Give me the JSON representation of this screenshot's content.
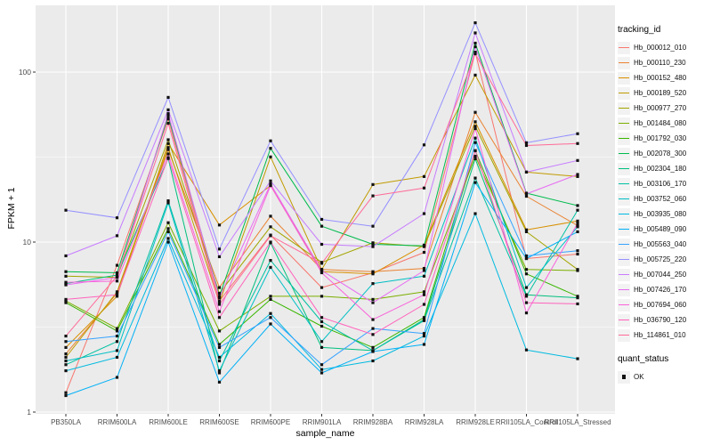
{
  "chart_data": {
    "type": "line",
    "title": "",
    "xlabel": "sample_name",
    "ylabel": "FPKM + 1",
    "y_scale": "log10",
    "y_ticks": [
      100,
      10,
      1
    ],
    "y_minor_gridlines": [
      3.1623,
      31.623
    ],
    "ylim": [
      1,
      250
    ],
    "grid": "major-white-on-grey",
    "panel_bg": "#EBEBEB",
    "grid_color": "#FFFFFF",
    "point_marker": "black-square",
    "legend_position": "right",
    "categories": [
      "PB350LA",
      "RRIM600LA",
      "RRIM600LE",
      "RRIM600SE",
      "RRIM600PE",
      "RRIM901LA",
      "RRIM928BA",
      "RRIM928LA",
      "RRIM928LE",
      "RRII105LA_Control",
      "RRII105LA_Stressed"
    ],
    "legend": {
      "color_title": "tracking_id",
      "shape_title": "quant_status",
      "shape_items": [
        {
          "label": "OK",
          "marker": "black-square"
        }
      ]
    },
    "series": [
      {
        "name": "Hb_000012_010",
        "color": "#F8766D",
        "values": [
          1.3,
          7.3,
          53,
          4.5,
          11.0,
          5.4,
          6.6,
          8.7,
          131,
          8.0,
          8.5
        ]
      },
      {
        "name": "Hb_000110_230",
        "color": "#EA8331",
        "values": [
          2.2,
          5.0,
          35,
          5.4,
          14.2,
          6.9,
          6.7,
          7.0,
          58,
          18.6,
          12.5
        ]
      },
      {
        "name": "Hb_000152_480",
        "color": "#D89000",
        "values": [
          2.4,
          4.8,
          38,
          12.6,
          21.5,
          6.7,
          6.5,
          9.6,
          51,
          11.8,
          13.3
        ]
      },
      {
        "name": "Hb_000189_520",
        "color": "#C09B00",
        "values": [
          2.1,
          5.1,
          36,
          4.4,
          31.7,
          6.9,
          21.8,
          24.3,
          96,
          25.8,
          24.3
        ]
      },
      {
        "name": "Hb_000977_270",
        "color": "#A3A500",
        "values": [
          6.3,
          6.2,
          40,
          5.0,
          12.3,
          7.6,
          9.9,
          9.4,
          48,
          11.5,
          6.9
        ]
      },
      {
        "name": "Hb_001484_080",
        "color": "#7CAE00",
        "values": [
          4.5,
          3.1,
          13,
          3.0,
          4.8,
          4.8,
          4.6,
          5.1,
          32,
          6.9,
          6.8
        ]
      },
      {
        "name": "Hb_001792_030",
        "color": "#39B600",
        "values": [
          4.4,
          3.0,
          12,
          2.5,
          4.6,
          3.2,
          2.4,
          3.6,
          34.5,
          6.5,
          4.8
        ]
      },
      {
        "name": "Hb_002078_300",
        "color": "#00BB4E",
        "values": [
          6.7,
          6.6,
          55,
          4.8,
          35.6,
          12.4,
          9.7,
          9.5,
          148,
          19.4,
          16.4
        ]
      },
      {
        "name": "Hb_002304_180",
        "color": "#00BF7D",
        "values": [
          5.7,
          6.4,
          31,
          1.7,
          9.9,
          2.4,
          2.3,
          3.5,
          30.9,
          4.9,
          4.7
        ]
      },
      {
        "name": "Hb_003106_170",
        "color": "#00C1A3",
        "values": [
          1.9,
          2.6,
          17.5,
          2.0,
          7.8,
          3.4,
          2.3,
          3.45,
          23.8,
          4.8,
          15.4
        ]
      },
      {
        "name": "Hb_003752_060",
        "color": "#00BFC4",
        "values": [
          2.0,
          2.3,
          17.0,
          1.75,
          7.1,
          2.6,
          5.7,
          6.3,
          40.9,
          5.4,
          12.3
        ]
      },
      {
        "name": "Hb_003935_080",
        "color": "#00BAE0",
        "values": [
          1.75,
          2.1,
          10.5,
          2.1,
          3.8,
          1.78,
          2.0,
          2.8,
          14.7,
          2.32,
          2.06
        ]
      },
      {
        "name": "Hb_005489_090",
        "color": "#00B0F6",
        "values": [
          1.25,
          1.6,
          10.0,
          1.5,
          3.3,
          1.7,
          2.27,
          2.5,
          22.4,
          8.0,
          11.5
        ]
      },
      {
        "name": "Hb_005563_040",
        "color": "#35A2FF",
        "values": [
          2.6,
          2.8,
          11.5,
          2.4,
          3.6,
          1.9,
          3.1,
          2.9,
          38.5,
          8.3,
          8.9
        ]
      },
      {
        "name": "Hb_005725_220",
        "color": "#9590FF",
        "values": [
          15.4,
          13.9,
          71,
          9.1,
          39.4,
          13.6,
          12.4,
          37.3,
          195,
          38.4,
          43.4
        ]
      },
      {
        "name": "Hb_007044_250",
        "color": "#C77CFF",
        "values": [
          8.3,
          10.9,
          60,
          8.2,
          22.9,
          9.7,
          9.4,
          14.7,
          170,
          25.8,
          30.2
        ]
      },
      {
        "name": "Hb_007426_170",
        "color": "#E76BF3",
        "values": [
          5.6,
          6.2,
          57,
          4.7,
          22.0,
          6.8,
          4.4,
          6.8,
          141,
          19.2,
          25.0
        ]
      },
      {
        "name": "Hb_007694_060",
        "color": "#FA62DB",
        "values": [
          5.8,
          5.9,
          33,
          3.9,
          21.5,
          6.6,
          3.5,
          4.9,
          46.5,
          3.83,
          12.9
        ]
      },
      {
        "name": "Hb_036790_120",
        "color": "#FF62BC",
        "values": [
          4.6,
          4.9,
          31.4,
          3.6,
          10.0,
          3.6,
          2.86,
          4.3,
          34.5,
          4.4,
          4.33
        ]
      },
      {
        "name": "Hb_114861_010",
        "color": "#FF6A98",
        "values": [
          2.8,
          6.3,
          50,
          4.3,
          10.9,
          7.5,
          18.7,
          20.8,
          128,
          37.0,
          38.0
        ]
      }
    ]
  }
}
